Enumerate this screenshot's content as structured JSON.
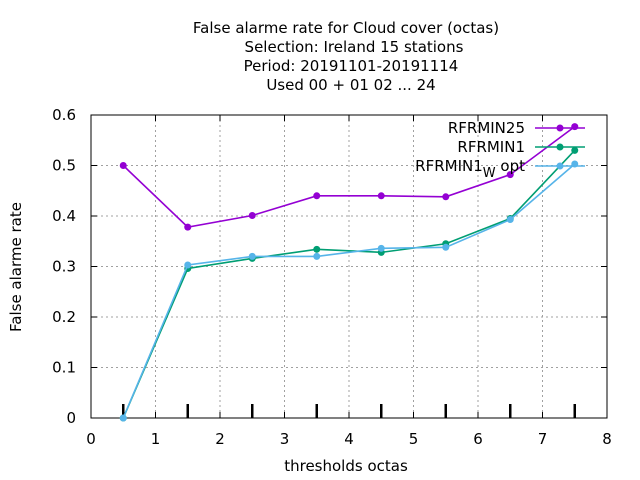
{
  "chart_data": {
    "type": "line",
    "title_lines": [
      "False alarme rate  for Cloud cover (octas)",
      "Selection: Ireland      15 stations",
      "Period: 20191101-20191114",
      "Used  00 + 01 02 ... 24"
    ],
    "xlabel": "thresholds octas",
    "ylabel": "False alarme rate",
    "xlim": [
      0,
      8
    ],
    "ylim": [
      0,
      0.6
    ],
    "xticks": [
      0,
      1,
      2,
      3,
      4,
      5,
      6,
      7,
      8
    ],
    "yticks": [
      0,
      0.1,
      0.2,
      0.3,
      0.4,
      0.5,
      0.6
    ],
    "grid": true,
    "legend_position": "top-right",
    "x": [
      0.5,
      1.5,
      2.5,
      3.5,
      4.5,
      5.5,
      6.5,
      7.5
    ],
    "series": [
      {
        "name": "RFRMIN25",
        "color": "#9400d3",
        "values": [
          0.5,
          0.378,
          0.401,
          0.44,
          0.44,
          0.438,
          0.482,
          0.577
        ]
      },
      {
        "name": "RFRMIN1",
        "name_parts": [
          "RFRMIN1",
          "",
          ""
        ],
        "color": "#009e73",
        "values": [
          0.0,
          0.296,
          0.316,
          0.334,
          0.328,
          0.345,
          0.395,
          0.53
        ]
      },
      {
        "name": "RFRMIN1_W opt",
        "name_parts": [
          "RFRMIN1",
          "W",
          " opt"
        ],
        "color": "#56b4e9",
        "values": [
          0.0,
          0.303,
          0.32,
          0.32,
          0.336,
          0.338,
          0.393,
          0.503
        ]
      }
    ]
  }
}
